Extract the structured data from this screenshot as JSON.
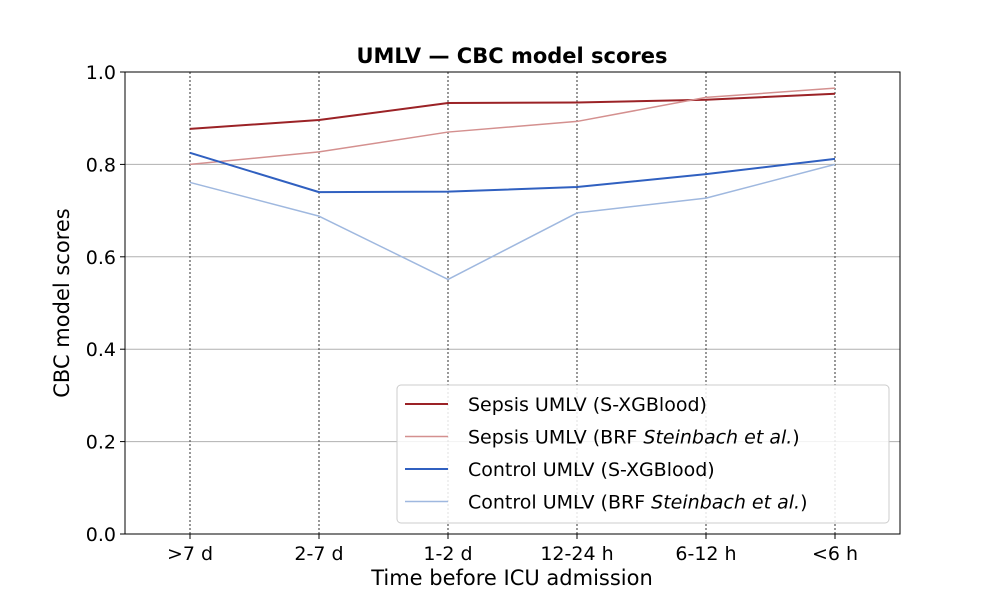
{
  "chart_data": {
    "type": "line",
    "title": "UMLV — CBC model scores",
    "xlabel": "Time before ICU admission",
    "ylabel": "CBC model scores",
    "categories": [
      ">7 d",
      "2-7 d",
      "1-2 d",
      "12-24 h",
      "6-12 h",
      "<6 h"
    ],
    "ylim": [
      0.0,
      1.0
    ],
    "yticks": [
      "0.0",
      "0.2",
      "0.4",
      "0.6",
      "0.8",
      "1.0"
    ],
    "grid": "horizontal solid, vertical dotted at categories",
    "legend_position": "lower-right",
    "series": [
      {
        "name": "Sepsis UMLV  (S-XGBlood)",
        "name_main": "Sepsis UMLV  (S-XGBlood)",
        "name_italic": "",
        "name_tail": "",
        "color": "#9b2226",
        "width": 2,
        "values": [
          0.877,
          0.896,
          0.933,
          0.934,
          0.94,
          0.953
        ]
      },
      {
        "name": "Sepsis UMLV  (BRF Steinbach et al.)",
        "name_main": "Sepsis UMLV  (BRF ",
        "name_italic": "Steinbach et al.",
        "name_tail": ")",
        "color": "#d4908f",
        "width": 1.5,
        "values": [
          0.8,
          0.827,
          0.87,
          0.893,
          0.945,
          0.965
        ]
      },
      {
        "name": "Control UMLV  (S-XGBlood)",
        "name_main": "Control UMLV  (S-XGBlood)",
        "name_italic": "",
        "name_tail": "",
        "color": "#3060c0",
        "width": 2,
        "values": [
          0.825,
          0.74,
          0.741,
          0.751,
          0.779,
          0.812
        ]
      },
      {
        "name": "Control UMLV  (BRF Steinbach et al.)",
        "name_main": "Control UMLV  (BRF ",
        "name_italic": "Steinbach et al.",
        "name_tail": ")",
        "color": "#9fb8df",
        "width": 1.5,
        "values": [
          0.761,
          0.688,
          0.551,
          0.695,
          0.727,
          0.8
        ]
      }
    ]
  }
}
